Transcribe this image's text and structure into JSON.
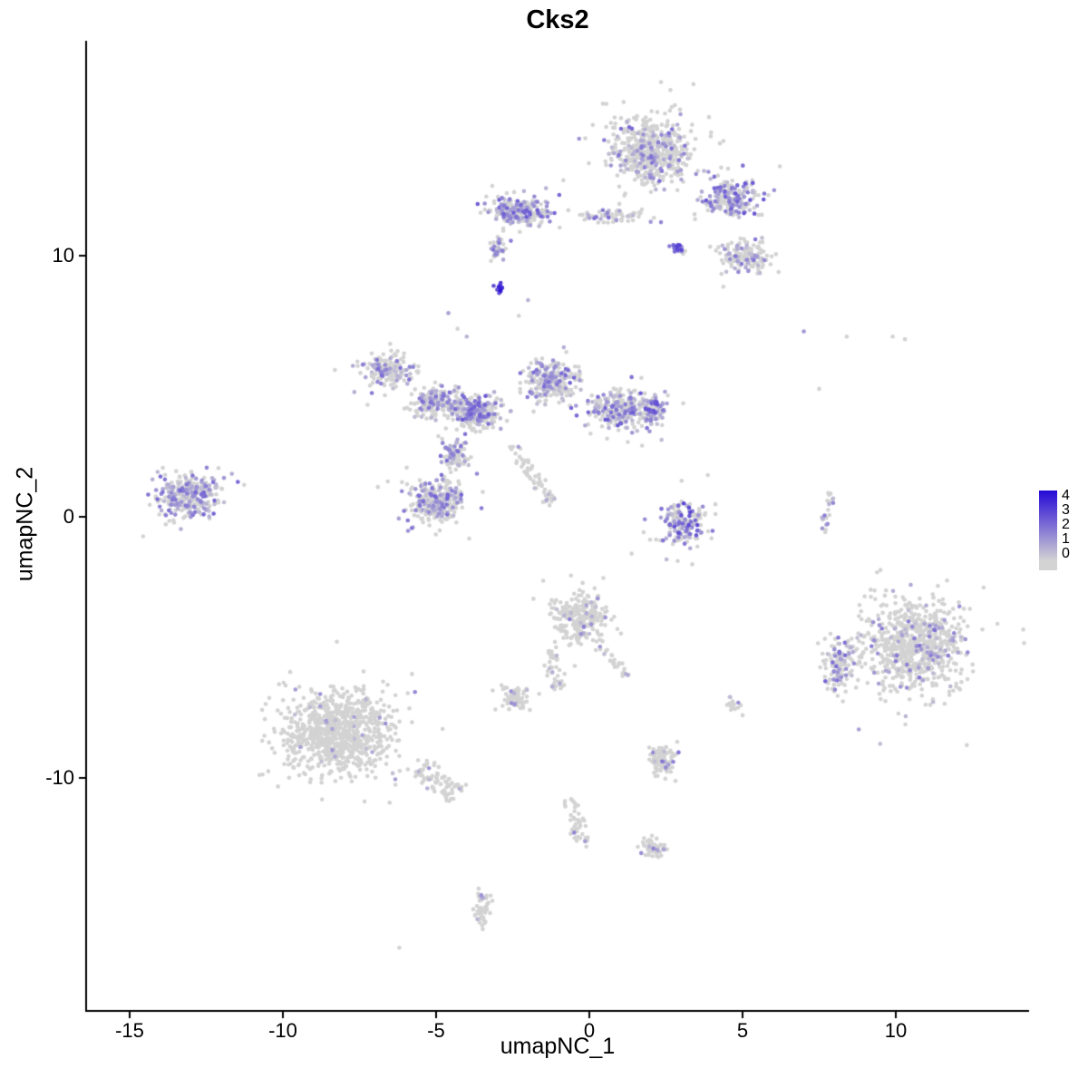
{
  "title": "Cks2",
  "axes": {
    "x_label": "umapNC_1",
    "y_label": "umapNC_2",
    "x_ticks": [
      {
        "v": -15,
        "label": "-15"
      },
      {
        "v": -10,
        "label": "-10"
      },
      {
        "v": -5,
        "label": "-5"
      },
      {
        "v": 0,
        "label": "0"
      },
      {
        "v": 5,
        "label": "5"
      },
      {
        "v": 10,
        "label": "10"
      }
    ],
    "y_ticks": [
      {
        "v": 10,
        "label": "10"
      },
      {
        "v": 0,
        "label": "0"
      },
      {
        "v": -10,
        "label": "-10"
      }
    ]
  },
  "legend": {
    "values": [
      4,
      3,
      2,
      1,
      0
    ],
    "labels": [
      "4",
      "3",
      "2",
      "1",
      "0"
    ]
  },
  "colors": {
    "background": "#ffffff",
    "axis": "#000000",
    "point_low": "#d3d3d3",
    "point_high": "#2509d6"
  },
  "chart_data": {
    "type": "scatter",
    "title": "Cks2",
    "xlabel": "umapNC_1",
    "ylabel": "umapNC_2",
    "xlim": [
      -16.4,
      14.3
    ],
    "ylim": [
      -18.9,
      18.2
    ],
    "x_ticks": [
      -15,
      -10,
      -5,
      0,
      5,
      10
    ],
    "y_ticks": [
      -10,
      0,
      10
    ],
    "color_scale": {
      "low": "#d3d3d3",
      "high": "#2509d6",
      "limits": [
        0,
        4
      ]
    },
    "point_radius": 2.3,
    "seed": 42,
    "clusters": [
      {
        "name": "top-main",
        "cx": 2.0,
        "cy": 14.0,
        "rx": 1.9,
        "ry": 1.85,
        "n": 560,
        "frac": 0.2,
        "vmax": 2.2
      },
      {
        "name": "top-right-arm",
        "cx": 4.6,
        "cy": 12.2,
        "rx": 1.3,
        "ry": 1.0,
        "n": 210,
        "frac": 0.45,
        "vmax": 2.5
      },
      {
        "name": "top-right-lower",
        "cx": 5.1,
        "cy": 10.0,
        "rx": 1.1,
        "ry": 0.85,
        "n": 140,
        "frac": 0.3,
        "vmax": 2.0
      },
      {
        "name": "violet-clump",
        "cx": 2.9,
        "cy": 10.3,
        "rx": 0.35,
        "ry": 0.25,
        "n": 25,
        "frac": 0.8,
        "vmin": 1.0,
        "vmax": 3.0
      },
      {
        "name": "upper-left-arm",
        "cx": -2.3,
        "cy": 11.7,
        "rx": 1.4,
        "ry": 0.75,
        "n": 230,
        "frac": 0.4,
        "vmax": 2.5
      },
      {
        "name": "upper-left-tail",
        "cx": -3.0,
        "cy": 10.3,
        "rx": 0.35,
        "ry": 0.65,
        "n": 40,
        "frac": 0.3,
        "vmax": 2.0
      },
      {
        "name": "top-bridge",
        "cx": 0.8,
        "cy": 11.5,
        "rx": 1.7,
        "ry": 0.35,
        "n": 70,
        "frac": 0.25,
        "vmax": 2.0
      },
      {
        "name": "dark-spot",
        "cx": -2.95,
        "cy": 8.7,
        "rx": 0.22,
        "ry": 0.28,
        "n": 12,
        "frac": 1.0,
        "vmin": 2.6,
        "vmax": 4.0
      },
      {
        "name": "mid-left-upper",
        "cx": -6.6,
        "cy": 5.6,
        "rx": 1.2,
        "ry": 0.85,
        "n": 175,
        "frac": 0.3,
        "vmax": 2.0
      },
      {
        "name": "mid-left",
        "cx": -5.0,
        "cy": 4.4,
        "rx": 1.2,
        "ry": 0.8,
        "n": 185,
        "frac": 0.3,
        "vmax": 2.0
      },
      {
        "name": "mid-center-dense",
        "cx": -3.7,
        "cy": 4.0,
        "rx": 1.1,
        "ry": 0.9,
        "n": 265,
        "frac": 0.4,
        "vmax": 2.5
      },
      {
        "name": "mid-upper",
        "cx": -1.2,
        "cy": 5.2,
        "rx": 1.25,
        "ry": 1.2,
        "n": 245,
        "frac": 0.35,
        "vmax": 2.2
      },
      {
        "name": "mid-right",
        "cx": 1.0,
        "cy": 4.1,
        "rx": 1.5,
        "ry": 1.0,
        "n": 260,
        "frac": 0.38,
        "vmax": 2.4
      },
      {
        "name": "mid-right-edge",
        "cx": 2.1,
        "cy": 4.1,
        "rx": 0.45,
        "ry": 0.7,
        "n": 90,
        "frac": 0.6,
        "vmax": 2.6
      },
      {
        "name": "mid-lower-blob",
        "cx": -5.0,
        "cy": 0.6,
        "rx": 1.3,
        "ry": 1.1,
        "n": 300,
        "frac": 0.35,
        "vmax": 2.2
      },
      {
        "name": "mid-neck",
        "cx": -4.4,
        "cy": 2.4,
        "rx": 0.7,
        "ry": 0.8,
        "n": 90,
        "frac": 0.35,
        "vmax": 2.0
      },
      {
        "name": "diag-streak",
        "type": "streak",
        "x1": -2.5,
        "y1": 2.7,
        "x2": -1.2,
        "y2": 0.5,
        "w": 0.18,
        "n": 60,
        "frac": 0.08,
        "vmax": 1.5
      },
      {
        "name": "left-cluster",
        "cx": -13.1,
        "cy": 0.8,
        "rx": 1.55,
        "ry": 1.15,
        "n": 290,
        "frac": 0.45,
        "vmax": 2.2
      },
      {
        "name": "right-mid-cluster",
        "cx": 3.0,
        "cy": -0.3,
        "rx": 1.15,
        "ry": 1.25,
        "n": 175,
        "frac": 0.42,
        "vmax": 2.8
      },
      {
        "name": "right-streak",
        "type": "streak",
        "x1": 7.95,
        "y1": 0.9,
        "x2": 7.6,
        "y2": -0.6,
        "w": 0.13,
        "n": 22,
        "frac": 0.3,
        "vmax": 2.0
      },
      {
        "name": "right-bottom-main",
        "cx": 10.6,
        "cy": -4.9,
        "rx": 2.35,
        "ry": 2.45,
        "n": 760,
        "frac": 0.12,
        "vmax": 2.0
      },
      {
        "name": "right-bottom-left-edge",
        "cx": 8.2,
        "cy": -5.6,
        "rx": 0.75,
        "ry": 1.5,
        "n": 120,
        "frac": 0.3,
        "vmax": 2.2
      },
      {
        "name": "center-bottom",
        "cx": -0.3,
        "cy": -3.9,
        "rx": 1.2,
        "ry": 1.3,
        "n": 265,
        "frac": 0.08,
        "vmax": 1.8
      },
      {
        "name": "center-bottom-arm",
        "type": "streak",
        "x1": -1.3,
        "y1": -5.2,
        "x2": -1.0,
        "y2": -6.6,
        "w": 0.2,
        "n": 40,
        "frac": 0.1,
        "vmax": 1.5
      },
      {
        "name": "center-bottom-right-arm",
        "type": "streak",
        "x1": 0.3,
        "y1": -5.0,
        "x2": 1.3,
        "y2": -6.1,
        "w": 0.15,
        "n": 25,
        "frac": 0.12,
        "vmax": 1.5
      },
      {
        "name": "small-blob-left",
        "cx": -2.4,
        "cy": -7.0,
        "rx": 0.65,
        "ry": 0.6,
        "n": 70,
        "frac": 0.08,
        "vmax": 1.5
      },
      {
        "name": "isolated-right-small",
        "cx": 4.7,
        "cy": -7.2,
        "rx": 0.35,
        "ry": 0.3,
        "n": 18,
        "frac": 0.1,
        "vmax": 1.5
      },
      {
        "name": "bottom-left-main",
        "cx": -8.3,
        "cy": -8.3,
        "rx": 2.55,
        "ry": 2.25,
        "n": 860,
        "frac": 0.03,
        "vmax": 1.5
      },
      {
        "name": "bottom-left-tail",
        "type": "streak",
        "x1": -5.7,
        "y1": -9.5,
        "x2": -4.3,
        "y2": -10.6,
        "w": 0.35,
        "n": 80,
        "frac": 0.05,
        "vmax": 1.5
      },
      {
        "name": "small-cluster-bottom",
        "cx": 2.4,
        "cy": -9.3,
        "rx": 0.6,
        "ry": 0.85,
        "n": 90,
        "frac": 0.15,
        "vmax": 2.0
      },
      {
        "name": "bottom-streak",
        "type": "streak",
        "x1": -0.6,
        "y1": -10.8,
        "x2": -0.2,
        "y2": -12.6,
        "w": 0.25,
        "n": 45,
        "frac": 0.08,
        "vmax": 1.8
      },
      {
        "name": "bottom-cluster-2",
        "cx": 2.1,
        "cy": -12.7,
        "rx": 0.55,
        "ry": 0.5,
        "n": 55,
        "frac": 0.12,
        "vmax": 2.0
      },
      {
        "name": "bottom-small",
        "cx": -3.5,
        "cy": -15.0,
        "rx": 0.4,
        "ry": 1.0,
        "n": 55,
        "frac": 0.08,
        "vmax": 1.5
      }
    ],
    "outliers": [
      [
        -4.6,
        7.8,
        1.0
      ],
      [
        -4.3,
        7.2,
        0
      ],
      [
        -4.0,
        6.9,
        0.6
      ],
      [
        -2.3,
        7.7,
        0
      ],
      [
        -2.0,
        8.3,
        0.7
      ],
      [
        7.0,
        7.1,
        1.2
      ],
      [
        8.4,
        6.9,
        0
      ],
      [
        9.9,
        6.9,
        0
      ],
      [
        10.3,
        6.8,
        0
      ],
      [
        7.5,
        4.9,
        0
      ],
      [
        -6.2,
        -16.5,
        0
      ],
      [
        5.0,
        -7.6,
        0
      ],
      [
        4.6,
        -6.9,
        0.5
      ]
    ]
  }
}
